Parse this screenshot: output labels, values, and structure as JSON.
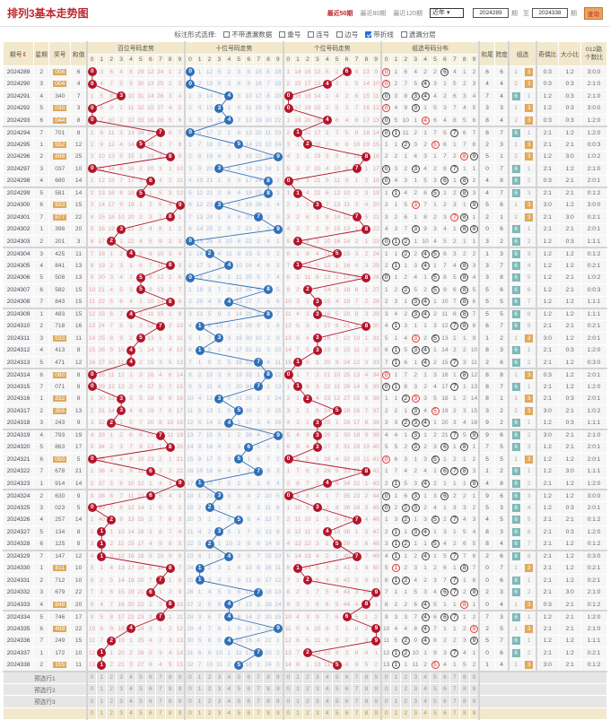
{
  "header": {
    "title": "排列3基本走势图",
    "ranges": [
      "最近50期",
      "最近80期",
      "最近120期"
    ],
    "active_range": 0,
    "year_select": "近年",
    "from_period": "2024289",
    "from_unit": "期",
    "to_label": "至",
    "to_period": "2024338",
    "to_unit": "期",
    "query_button": "查询"
  },
  "options": {
    "label": "标注形式选择:",
    "items": [
      {
        "label": "不带遗漏数据",
        "checked": false
      },
      {
        "label": "重号",
        "checked": false
      },
      {
        "label": "连号",
        "checked": false
      },
      {
        "label": "边号",
        "checked": false
      },
      {
        "label": "带折线",
        "checked": true
      },
      {
        "label": "遗漏分层",
        "checked": false
      }
    ]
  },
  "columns": {
    "period": "期号",
    "sort_icon": "⇕",
    "weekday": "星期",
    "number": "奖号",
    "sum": "和值",
    "hundreds": "百位号码走势",
    "tens": "十位号码走势",
    "ones": "个位号码走势",
    "group_dist": "组选号码分布",
    "sum_tail": "和尾",
    "span": "跨度",
    "group": "组选",
    "odd_even": "奇偶比",
    "big_small": "大小比",
    "route012": "012路\n个数比",
    "digits": [
      "0",
      "1",
      "2",
      "3",
      "4",
      "5",
      "6",
      "7",
      "8",
      "9"
    ]
  },
  "colors": {
    "red_ball": "#b3152a",
    "blue_ball": "#2f70b8",
    "highlight": "#e0a95a"
  },
  "initial_omission": {
    "hundreds": [
      0,
      2,
      5,
      3,
      7,
      28,
      11,
      23,
      0,
      1
    ],
    "tens": [
      0,
      0,
      11,
      4,
      1,
      2,
      7,
      14,
      5,
      17
    ],
    "ones": [
      0,
      13,
      15,
      11,
      4,
      1,
      0,
      3,
      12,
      8
    ],
    "group": [
      0,
      0,
      5,
      3,
      1,
      1,
      0,
      3,
      0,
      1
    ],
    "g6": 0,
    "g3": 0
  },
  "rows": [
    [
      "2024289",
      "2",
      "006",
      "6"
    ],
    [
      "2024290",
      "3",
      "004",
      "4"
    ],
    [
      "2024291",
      "4",
      "340",
      "7"
    ],
    [
      "2024292",
      "5",
      "030",
      "3"
    ],
    [
      "2024293",
      "6",
      "044",
      "8"
    ],
    [
      "2024294",
      "7",
      "701",
      "8"
    ],
    [
      "2024295",
      "1",
      "552",
      "12"
    ],
    [
      "2024296",
      "2",
      "898",
      "25"
    ],
    [
      "2024297",
      "3",
      "037",
      "10"
    ],
    [
      "2024298",
      "4",
      "680",
      "14"
    ],
    [
      "2024299",
      "5",
      "581",
      "14"
    ],
    [
      "2024300",
      "6",
      "933",
      "15"
    ],
    [
      "2024301",
      "7",
      "877",
      "22"
    ],
    [
      "2024302",
      "1",
      "398",
      "20"
    ],
    [
      "2024303",
      "2",
      "201",
      "3"
    ],
    [
      "2024304",
      "3",
      "425",
      "11"
    ],
    [
      "2024305",
      "4",
      "841",
      "13"
    ],
    [
      "2024306",
      "5",
      "508",
      "13"
    ],
    [
      "2024307",
      "6",
      "582",
      "15"
    ],
    [
      "2024308",
      "7",
      "843",
      "15"
    ],
    [
      "2024309",
      "1",
      "483",
      "15"
    ],
    [
      "2024310",
      "2",
      "718",
      "16"
    ],
    [
      "2024311",
      "3",
      "533",
      "11"
    ],
    [
      "2024312",
      "4",
      "413",
      "8"
    ],
    [
      "2024313",
      "5",
      "471",
      "12"
    ],
    [
      "2024314",
      "6",
      "080",
      "8"
    ],
    [
      "2024315",
      "7",
      "071",
      "8"
    ],
    [
      "2024316",
      "1",
      "332",
      "8"
    ],
    [
      "2024317",
      "2",
      "355",
      "13"
    ],
    [
      "2024318",
      "3",
      "243",
      "9"
    ],
    [
      "2024319",
      "4",
      "793",
      "19"
    ],
    [
      "2024320",
      "5",
      "863",
      "17"
    ],
    [
      "2024321",
      "6",
      "050",
      "5"
    ],
    [
      "2024322",
      "7",
      "678",
      "21"
    ],
    [
      "2024323",
      "1",
      "914",
      "14"
    ],
    [
      "2024324",
      "2",
      "630",
      "9"
    ],
    [
      "2024325",
      "3",
      "023",
      "5"
    ],
    [
      "2024326",
      "4",
      "257",
      "14"
    ],
    [
      "2024327",
      "5",
      "134",
      "8"
    ],
    [
      "2024328",
      "6",
      "125",
      "8"
    ],
    [
      "2024329",
      "7",
      "147",
      "12"
    ],
    [
      "2024330",
      "1",
      "811",
      "10"
    ],
    [
      "2024331",
      "2",
      "712",
      "10"
    ],
    [
      "2024332",
      "3",
      "679",
      "22"
    ],
    [
      "2024333",
      "4",
      "848",
      "20"
    ],
    [
      "2024334",
      "5",
      "746",
      "17"
    ],
    [
      "2024335",
      "6",
      "499",
      "22"
    ],
    [
      "2024336",
      "7",
      "249",
      "15"
    ],
    [
      "2024337",
      "1",
      "172",
      "10"
    ],
    [
      "2024338",
      "2",
      "155",
      "11"
    ]
  ],
  "preselect_rows": [
    "预选行1",
    "预选行2",
    "预选行3"
  ]
}
